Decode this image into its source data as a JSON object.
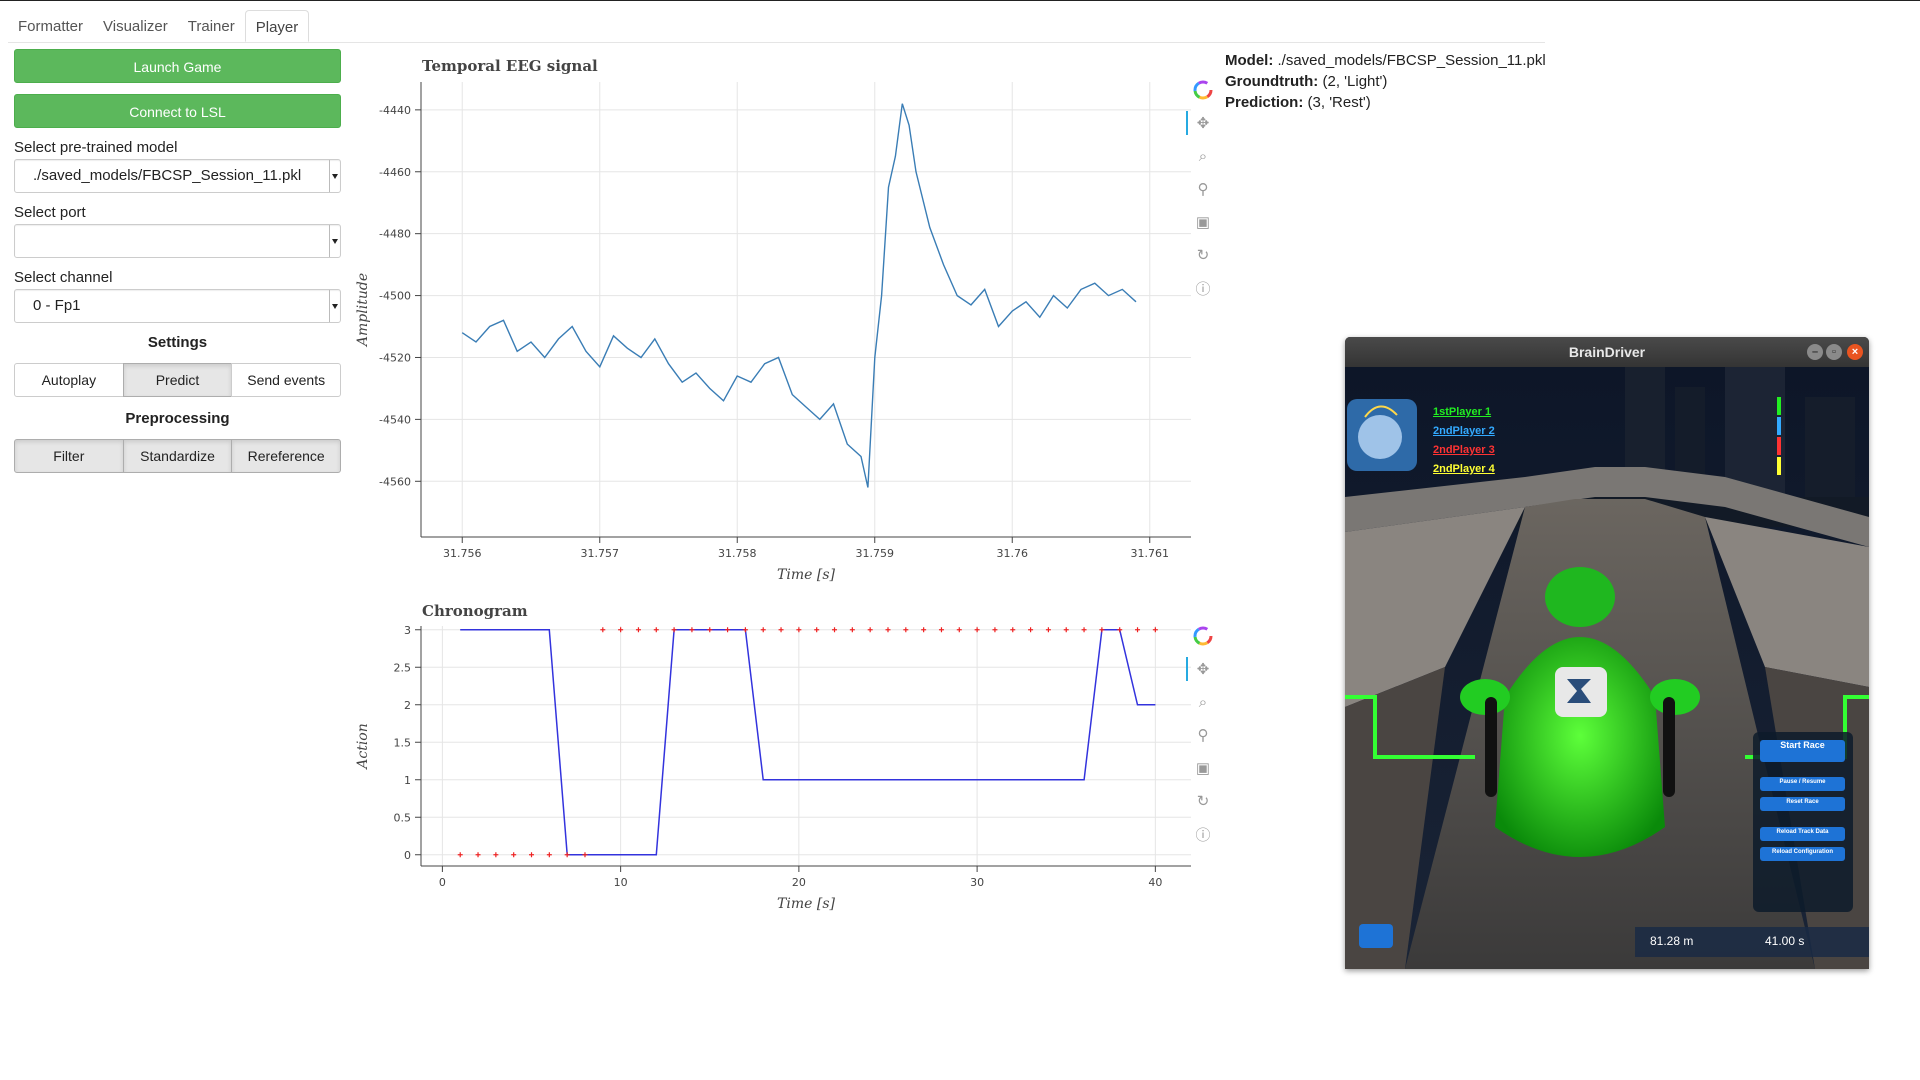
{
  "tabs": [
    "Formatter",
    "Visualizer",
    "Trainer",
    "Player"
  ],
  "active_tab": "Player",
  "left": {
    "launch_label": "Launch Game",
    "connect_label": "Connect to LSL",
    "model_label": "Select pre-trained model",
    "model_value": "./saved_models/FBCSP_Session_11.pkl",
    "port_label": "Select port",
    "port_value": "",
    "channel_label": "Select channel",
    "channel_value": "0 - Fp1",
    "settings_title": "Settings",
    "settings_buttons": [
      "Autoplay",
      "Predict",
      "Send events"
    ],
    "settings_active": "Predict",
    "preprocessing_title": "Preprocessing",
    "preprocessing_buttons": [
      "Filter",
      "Standardize",
      "Rereference"
    ]
  },
  "info": {
    "model_key": "Model:",
    "model_val": "./saved_models/FBCSP_Session_11.pkl",
    "gt_key": "Groundtruth:",
    "gt_val": "(2, 'Light')",
    "pred_key": "Prediction:",
    "pred_val": "(3, 'Rest')"
  },
  "toolbar_icons": [
    "bokeh-logo-icon",
    "pan-icon",
    "box-zoom-icon",
    "wheel-zoom-icon",
    "save-icon",
    "reset-icon",
    "help-icon"
  ],
  "chart_data": [
    {
      "type": "line",
      "title": "Temporal EEG signal",
      "xlabel": "Time [s]",
      "ylabel": "Amplitude",
      "xlim": [
        31.7557,
        31.7613
      ],
      "ylim": [
        -4578,
        -4431
      ],
      "xticks": [
        "31.756",
        "31.757",
        "31.758",
        "31.759",
        "31.76",
        "31.761"
      ],
      "xtick_values": [
        31.756,
        31.757,
        31.758,
        31.759,
        31.76,
        31.761
      ],
      "yticks": [
        "-4440",
        "-4460",
        "-4480",
        "-4500",
        "-4520",
        "-4540",
        "-4560"
      ],
      "ytick_values": [
        -4440,
        -4460,
        -4480,
        -4500,
        -4520,
        -4540,
        -4560
      ],
      "grid": true,
      "color": "#3a7db5",
      "x": [
        31.756,
        31.7561,
        31.7562,
        31.7563,
        31.7564,
        31.7565,
        31.7566,
        31.7567,
        31.7568,
        31.7569,
        31.757,
        31.7571,
        31.7572,
        31.7573,
        31.7574,
        31.7575,
        31.7576,
        31.7577,
        31.7578,
        31.7579,
        31.758,
        31.7581,
        31.7582,
        31.7583,
        31.7584,
        31.7585,
        31.7586,
        31.7587,
        31.7588,
        31.7589,
        31.75895,
        31.759,
        31.75905,
        31.7591,
        31.75915,
        31.7592,
        31.75925,
        31.7593,
        31.7594,
        31.7595,
        31.7596,
        31.7597,
        31.7598,
        31.7599,
        31.76,
        31.7601,
        31.7602,
        31.7603,
        31.7604,
        31.7605,
        31.7606,
        31.7607,
        31.7608,
        31.7609
      ],
      "y": [
        -4512,
        -4515,
        -4510,
        -4508,
        -4518,
        -4515,
        -4520,
        -4514,
        -4510,
        -4518,
        -4523,
        -4513,
        -4517,
        -4520,
        -4514,
        -4522,
        -4528,
        -4525,
        -4530,
        -4534,
        -4526,
        -4528,
        -4522,
        -4520,
        -4532,
        -4536,
        -4540,
        -4535,
        -4548,
        -4552,
        -4562,
        -4520,
        -4500,
        -4465,
        -4455,
        -4438,
        -4445,
        -4460,
        -4478,
        -4490,
        -4500,
        -4503,
        -4498,
        -4510,
        -4505,
        -4502,
        -4507,
        -4500,
        -4504,
        -4498,
        -4496,
        -4500,
        -4498,
        -4502
      ]
    },
    {
      "type": "line",
      "title": "Chronogram",
      "xlabel": "Time [s]",
      "ylabel": "Action",
      "xlim": [
        -1.2,
        42
      ],
      "ylim": [
        -0.15,
        3.05
      ],
      "xticks": [
        "0",
        "10",
        "20",
        "30",
        "40"
      ],
      "xtick_values": [
        0,
        10,
        20,
        30,
        40
      ],
      "yticks": [
        "3",
        "2.5",
        "2",
        "1.5",
        "1",
        "0.5",
        "0"
      ],
      "ytick_values": [
        3,
        2.5,
        2,
        1.5,
        1,
        0.5,
        0
      ],
      "grid": true,
      "series": [
        {
          "type": "line",
          "color": "#3333dd",
          "x": [
            1,
            6,
            7,
            8,
            11,
            12,
            13,
            16,
            17,
            18,
            36,
            37,
            38,
            39,
            40
          ],
          "y": [
            3,
            3,
            0,
            0,
            0,
            0,
            3,
            3,
            3,
            1,
            1,
            3,
            3,
            2,
            2
          ]
        },
        {
          "type": "scatter",
          "color": "#ee2222",
          "x": [
            1,
            2,
            3,
            4,
            5,
            6,
            7,
            8,
            9,
            10,
            11,
            12,
            13,
            14,
            15,
            16,
            17,
            18,
            19,
            20,
            21,
            22,
            23,
            24,
            25,
            26,
            27,
            28,
            29,
            30,
            31,
            32,
            33,
            34,
            35,
            36,
            37,
            38,
            39,
            40
          ],
          "y": [
            0,
            0,
            0,
            0,
            0,
            0,
            0,
            0,
            3,
            3,
            3,
            3,
            3,
            3,
            3,
            3,
            3,
            3,
            3,
            3,
            3,
            3,
            3,
            3,
            3,
            3,
            3,
            3,
            3,
            3,
            3,
            3,
            3,
            3,
            3,
            3,
            3,
            3,
            3,
            3
          ]
        }
      ]
    }
  ],
  "game": {
    "window_title": "BrainDriver",
    "players": [
      {
        "label": "1stPlayer 1",
        "color": "#22ee22"
      },
      {
        "label": "2ndPlayer 2",
        "color": "#33aaff"
      },
      {
        "label": "2ndPlayer 3",
        "color": "#ff3333"
      },
      {
        "label": "2ndPlayer 4",
        "color": "#ffff33"
      }
    ],
    "menu_buttons": [
      "Start Race",
      "Pause / Resume",
      "Reset Race",
      "Reload Track Data",
      "Reload Configuration"
    ],
    "distance": "81.28 m",
    "time": "41.00 s"
  }
}
